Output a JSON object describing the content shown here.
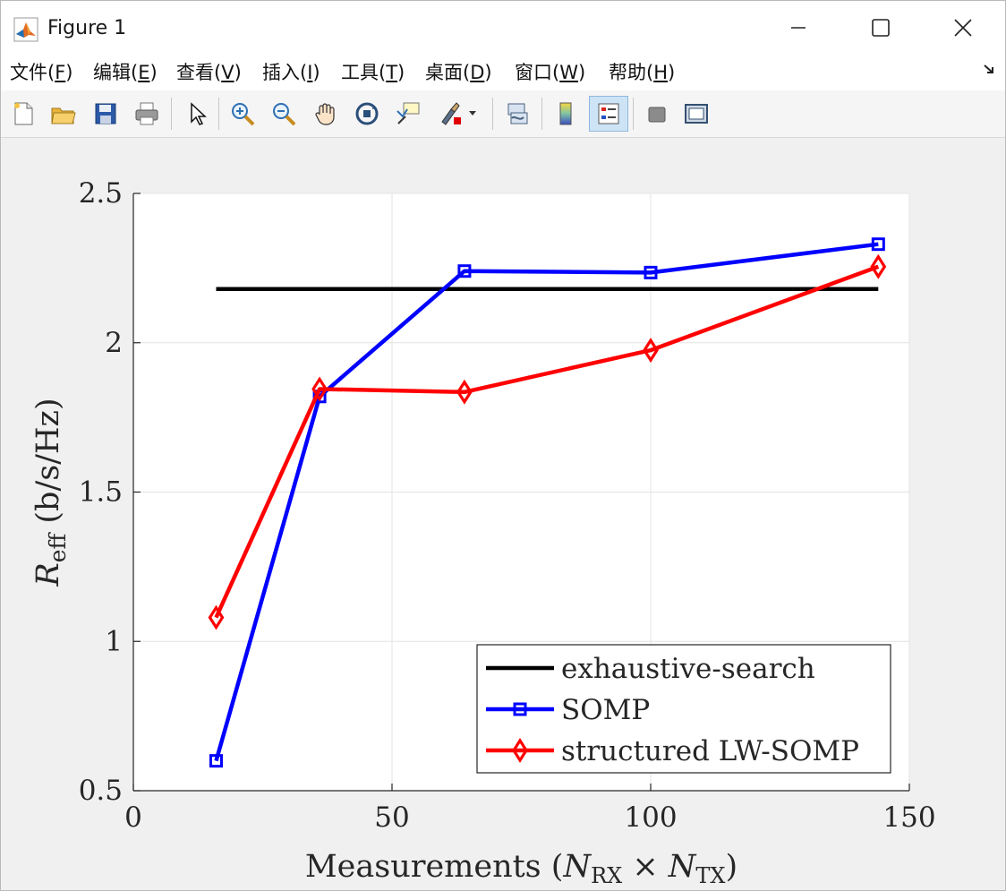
{
  "window": {
    "title": "Figure 1"
  },
  "menu": [
    {
      "label": "文件(",
      "key": "F",
      "suffix": ")"
    },
    {
      "label": "编辑(",
      "key": "E",
      "suffix": ")"
    },
    {
      "label": "查看(",
      "key": "V",
      "suffix": ")"
    },
    {
      "label": "插入(",
      "key": "I",
      "suffix": ")"
    },
    {
      "label": "工具(",
      "key": "T",
      "suffix": ")"
    },
    {
      "label": "桌面(",
      "key": "D",
      "suffix": ")"
    },
    {
      "label": "窗口(",
      "key": "W",
      "suffix": ")"
    },
    {
      "label": "帮助(",
      "key": "H",
      "suffix": ")"
    }
  ],
  "toolbar_icons": [
    "new-figure-icon",
    "open-file-icon",
    "save-icon",
    "print-icon",
    "pointer-icon",
    "zoom-in-icon",
    "zoom-out-icon",
    "pan-hand-icon",
    "rotate-3d-icon",
    "data-cursor-icon",
    "brush-icon",
    "link-plot-icon",
    "colorbar-icon",
    "legend-icon",
    "hide-plot-tools-icon",
    "show-plot-tools-icon"
  ],
  "chart_data": {
    "type": "line",
    "xlabel": "Measurements (N_RX × N_TX)",
    "ylabel": "R_eff (b/s/Hz)",
    "xlim": [
      0,
      150
    ],
    "ylim": [
      0.5,
      2.5
    ],
    "xticks": [
      "0",
      "50",
      "100",
      "150"
    ],
    "yticks": [
      "0.5",
      "1",
      "1.5",
      "2",
      "2.5"
    ],
    "grid": true,
    "legend_position": "bottom-right",
    "series": [
      {
        "name": "exhaustive-search",
        "color": "#000000",
        "marker": "none",
        "x": [
          16,
          144
        ],
        "y": [
          2.18,
          2.18
        ]
      },
      {
        "name": "SOMP",
        "color": "#0000ff",
        "marker": "square",
        "x": [
          16,
          36,
          64,
          100,
          144
        ],
        "y": [
          0.6,
          1.82,
          2.24,
          2.235,
          2.33
        ]
      },
      {
        "name": "structured LW-SOMP",
        "color": "#ff0000",
        "marker": "diamond",
        "x": [
          16,
          36,
          64,
          100,
          144
        ],
        "y": [
          1.08,
          1.845,
          1.835,
          1.975,
          2.255
        ]
      }
    ]
  }
}
